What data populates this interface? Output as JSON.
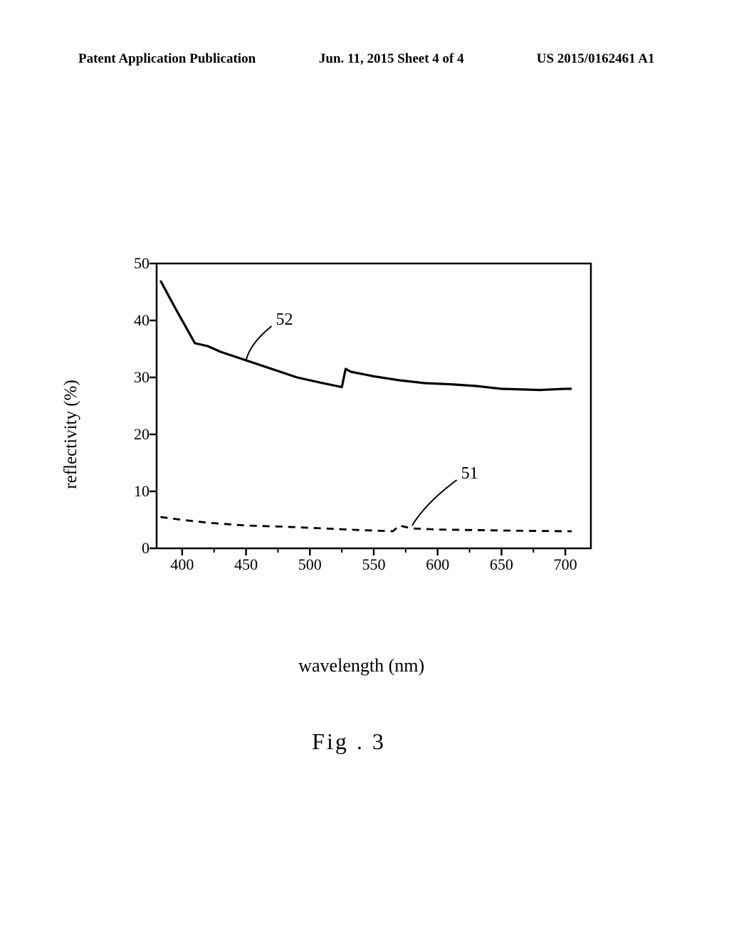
{
  "header": {
    "left": "Patent Application Publication",
    "center": "Jun. 11, 2015  Sheet 4 of 4",
    "right": "US 2015/0162461 A1"
  },
  "chart": {
    "type": "line",
    "title": "",
    "xlabel": "wavelength (nm)",
    "ylabel": "reflectivity (%)",
    "xlim": [
      380,
      720
    ],
    "ylim": [
      0,
      50
    ],
    "xtick_step": 50,
    "ytick_step": 10,
    "xticks": [
      400,
      450,
      500,
      550,
      600,
      650,
      700
    ],
    "yticks": [
      0,
      10,
      20,
      30,
      40,
      50
    ],
    "background_color": "#ffffff",
    "axis_color": "#000000",
    "line_width_axis": 2.5,
    "tick_font_size": 22,
    "label_font_size": 25,
    "series": [
      {
        "id": "52",
        "label": "52",
        "style": "solid",
        "color": "#000000",
        "line_width": 3.2,
        "data": [
          [
            383,
            47
          ],
          [
            395,
            42
          ],
          [
            410,
            36
          ],
          [
            420,
            35.5
          ],
          [
            430,
            34.5
          ],
          [
            450,
            33
          ],
          [
            470,
            31.5
          ],
          [
            490,
            30
          ],
          [
            510,
            29
          ],
          [
            525,
            28.3
          ],
          [
            528,
            31.5
          ],
          [
            532,
            31
          ],
          [
            550,
            30.2
          ],
          [
            570,
            29.5
          ],
          [
            590,
            29
          ],
          [
            610,
            28.8
          ],
          [
            630,
            28.5
          ],
          [
            650,
            28
          ],
          [
            680,
            27.8
          ],
          [
            700,
            28
          ],
          [
            705,
            28
          ]
        ],
        "annotation": {
          "x": 470,
          "y": 39,
          "lead_to_x": 450,
          "lead_to_y": 33
        }
      },
      {
        "id": "51",
        "label": "51",
        "style": "dashed",
        "color": "#000000",
        "line_width": 2.8,
        "dash": "10,8",
        "data": [
          [
            383,
            5.5
          ],
          [
            400,
            5
          ],
          [
            420,
            4.5
          ],
          [
            450,
            4
          ],
          [
            480,
            3.8
          ],
          [
            510,
            3.5
          ],
          [
            540,
            3.2
          ],
          [
            565,
            3
          ],
          [
            570,
            4
          ],
          [
            580,
            3.5
          ],
          [
            600,
            3.3
          ],
          [
            630,
            3.2
          ],
          [
            660,
            3.1
          ],
          [
            700,
            3
          ],
          [
            705,
            3
          ]
        ],
        "annotation": {
          "x": 615,
          "y": 12,
          "lead_to_x": 580,
          "lead_to_y": 4
        }
      }
    ]
  },
  "figure_caption": "Fig . 3"
}
